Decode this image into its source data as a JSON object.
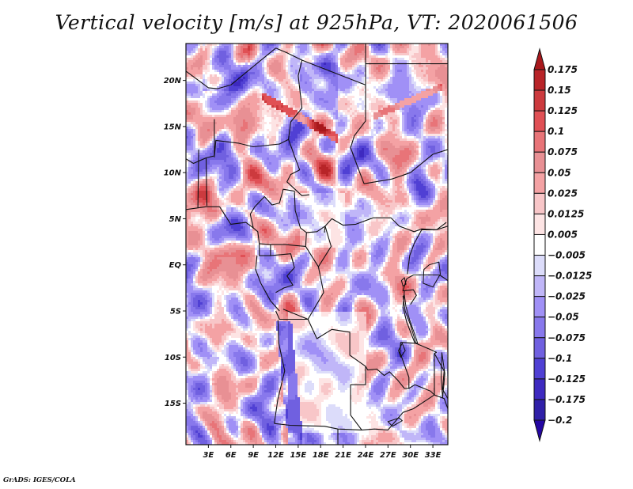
{
  "chart_data": {
    "type": "heatmap",
    "title": "Vertical velocity [m/s] at 925hPa, VT: 2020061506",
    "variable": "Vertical velocity",
    "units": "m/s",
    "level": "925hPa",
    "valid_time": "2020061506",
    "xlabel": "",
    "ylabel": "",
    "x_axis": {
      "range_deg_east": [
        0,
        35
      ],
      "ticks": [
        3,
        6,
        9,
        12,
        15,
        18,
        21,
        24,
        27,
        30,
        33
      ],
      "tick_labels": [
        "3E",
        "6E",
        "9E",
        "12E",
        "15E",
        "18E",
        "21E",
        "24E",
        "27E",
        "30E",
        "33E"
      ]
    },
    "y_axis": {
      "range_deg_north": [
        -19.5,
        24
      ],
      "ticks": [
        20,
        15,
        10,
        5,
        0,
        -5,
        -10,
        -15
      ],
      "tick_labels": [
        "20N",
        "15N",
        "10N",
        "5N",
        "EQ",
        "5S",
        "10S",
        "15S"
      ]
    },
    "grid": false,
    "legend": "colorbar-right",
    "colorbar": {
      "orientation": "vertical",
      "extend": "both",
      "levels": [
        0.175,
        0.15,
        0.125,
        0.1,
        0.075,
        0.05,
        0.025,
        0.0125,
        0.005,
        -0.005,
        -0.0125,
        -0.025,
        -0.05,
        -0.075,
        -0.1,
        -0.125,
        -0.175,
        -0.2
      ],
      "level_labels": [
        "0.175",
        "0.15",
        "0.125",
        "0.1",
        "0.075",
        "0.05",
        "0.025",
        "0.0125",
        "0.005",
        "−0.005",
        "−0.0125",
        "−0.025",
        "−0.05",
        "−0.075",
        "−0.1",
        "−0.125",
        "−0.175",
        "−0.2"
      ],
      "colors_top_to_bottom": [
        "#a8181c",
        "#b82428",
        "#cc3a3e",
        "#e05055",
        "#e87478",
        "#e89094",
        "#f4a2a4",
        "#f8c6c8",
        "#fde4e4",
        "#ffffff",
        "#dcdcfa",
        "#c0b6f8",
        "#a090f6",
        "#8878ec",
        "#7060e0",
        "#5040d4",
        "#3e2ac0",
        "#3020a8",
        "#2406a2"
      ]
    },
    "field_description": "Mixed small-scale positive (red) and negative (blue) vertical velocity over central Africa; strong descending (blue) band along Angolan coast near 12-14E, 10-18S; ascending (red) streaks over Chad/Niger near 15-17N; near-zero (white) over Angola, southern DRC interior."
  },
  "footer": {
    "credit": "GrADS: IGES/COLA"
  }
}
